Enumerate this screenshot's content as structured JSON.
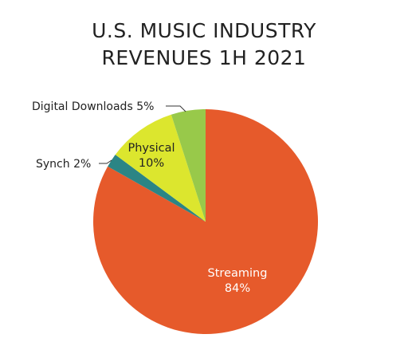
{
  "chart_data": {
    "type": "pie",
    "title_lines": [
      "U.S. MUSIC INDUSTRY",
      "REVENUES 1H 2021"
    ],
    "slices": [
      {
        "label": "Streaming",
        "value_label": "84%",
        "value": 84,
        "color": "#E65A2B",
        "label_color": "#ffffff"
      },
      {
        "label": "Synch",
        "value_label": "2%",
        "value": 2,
        "color": "#2B8585",
        "label_color": "#222222"
      },
      {
        "label": "Physical",
        "value_label": "10%",
        "value": 10,
        "color": "#DCE62E",
        "label_color": "#222222"
      },
      {
        "label": "Digital Downloads",
        "value_label": "5%",
        "value": 5,
        "color": "#98C94A",
        "label_color": "#222222"
      }
    ]
  }
}
